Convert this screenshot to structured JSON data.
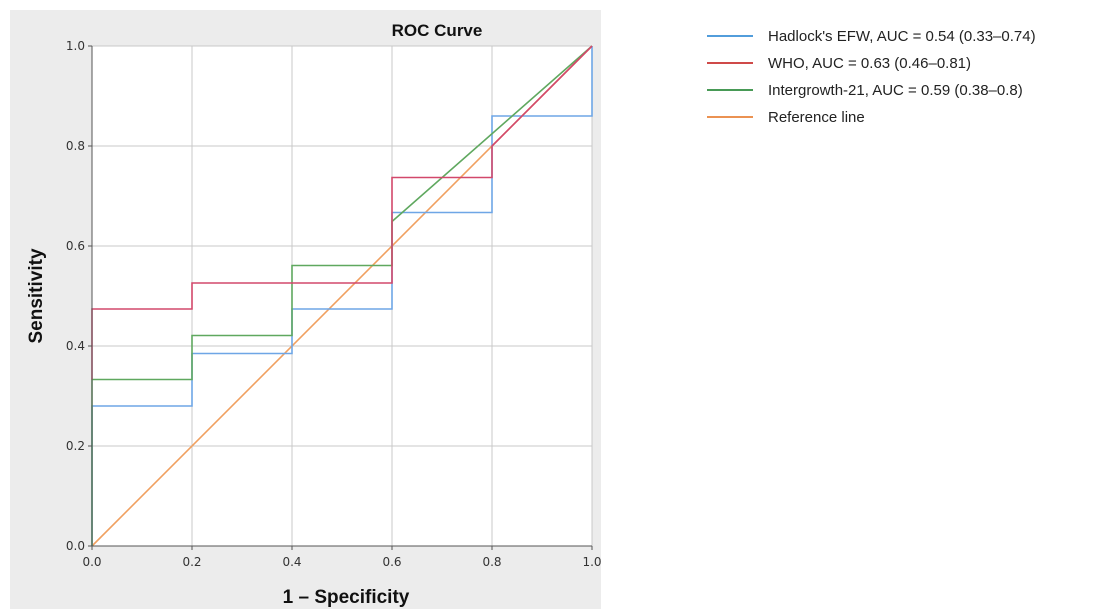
{
  "chart_data": {
    "type": "line",
    "title": "ROC Curve",
    "xlabel": "1 – Specificity",
    "ylabel": "Sensitivity",
    "xlim": [
      0,
      1
    ],
    "ylim": [
      0,
      1
    ],
    "xticks": [
      "0.0",
      "0.2",
      "0.4",
      "0.6",
      "0.8",
      "1.0"
    ],
    "yticks": [
      "0.0",
      "0.2",
      "0.4",
      "0.6",
      "0.8",
      "1.0"
    ],
    "grid": true,
    "legend_position": "right",
    "series": [
      {
        "name": "Hadlock's EFW, AUC = 0.54 (0.33–0.74)",
        "color": "#6ea6e6",
        "legend_color": "#3a8fd6",
        "points": [
          [
            0,
            0
          ],
          [
            0,
            0.28
          ],
          [
            0.2,
            0.28
          ],
          [
            0.2,
            0.385
          ],
          [
            0.4,
            0.385
          ],
          [
            0.4,
            0.474
          ],
          [
            0.6,
            0.474
          ],
          [
            0.6,
            0.667
          ],
          [
            0.8,
            0.667
          ],
          [
            0.8,
            0.86
          ],
          [
            1.0,
            0.86
          ],
          [
            1.0,
            1.0
          ]
        ]
      },
      {
        "name": "WHO, AUC = 0.63 (0.46–0.81)",
        "color": "#d2486b",
        "legend_color": "#c8302f",
        "points": [
          [
            0,
            0.333
          ],
          [
            0,
            0.474
          ],
          [
            0.2,
            0.474
          ],
          [
            0.2,
            0.526
          ],
          [
            0.6,
            0.526
          ],
          [
            0.6,
            0.737
          ],
          [
            0.8,
            0.737
          ],
          [
            0.8,
            0.8
          ],
          [
            1.0,
            1.0
          ]
        ]
      },
      {
        "name": "Intergrowth-21, AUC = 0.59 (0.38–0.8)",
        "color": "#5fa85f",
        "legend_color": "#2e8b3e",
        "points": [
          [
            0,
            0
          ],
          [
            0,
            0.333
          ],
          [
            0.2,
            0.333
          ],
          [
            0.2,
            0.421
          ],
          [
            0.4,
            0.421
          ],
          [
            0.4,
            0.561
          ],
          [
            0.6,
            0.561
          ],
          [
            0.6,
            0.649
          ],
          [
            1.0,
            1.0
          ]
        ]
      },
      {
        "name": "Reference line",
        "color": "#f0a060",
        "legend_color": "#e8823a",
        "points": [
          [
            0,
            0
          ],
          [
            1,
            1
          ]
        ]
      }
    ]
  }
}
